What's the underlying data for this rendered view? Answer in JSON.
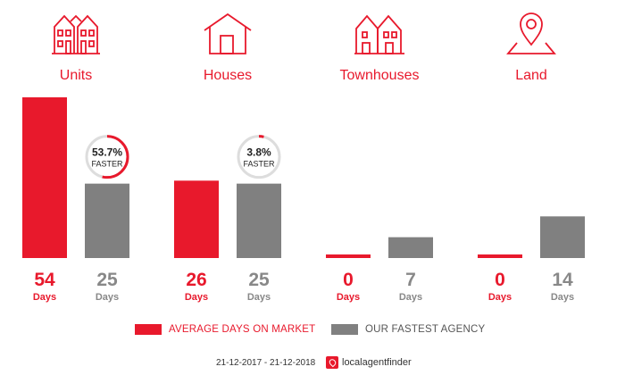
{
  "categories": [
    {
      "label": "Units",
      "icon": "units-icon"
    },
    {
      "label": "Houses",
      "icon": "house-icon"
    },
    {
      "label": "Townhouses",
      "icon": "townhouses-icon"
    },
    {
      "label": "Land",
      "icon": "land-pin-icon"
    }
  ],
  "colors": {
    "accent": "#e8192c",
    "agency": "#808080",
    "badge_ring": "#dddddd",
    "label_gray": "#888888"
  },
  "chart_data": {
    "type": "bar",
    "categories": [
      "Units",
      "Houses",
      "Townhouses",
      "Land"
    ],
    "series": [
      {
        "name": "AVERAGE DAYS ON MARKET",
        "values": [
          54,
          26,
          0,
          0
        ]
      },
      {
        "name": "OUR FASTEST AGENCY",
        "values": [
          25,
          25,
          7,
          14
        ]
      }
    ],
    "value_unit_label": "Days",
    "badges": [
      {
        "category": "Units",
        "percent_text": "53.7%",
        "label": "FASTER",
        "fraction": 0.537
      },
      {
        "category": "Houses",
        "percent_text": "3.8%",
        "label": "FASTER",
        "fraction": 0.038
      }
    ],
    "ylim": [
      0,
      54
    ],
    "legend_position": "bottom"
  },
  "legend": {
    "market_label": "AVERAGE DAYS ON MARKET",
    "agency_label": "OUR FASTEST AGENCY"
  },
  "footer": {
    "date_range": "21-12-2017 - 21-12-2018",
    "brand": "localagentfinder"
  }
}
